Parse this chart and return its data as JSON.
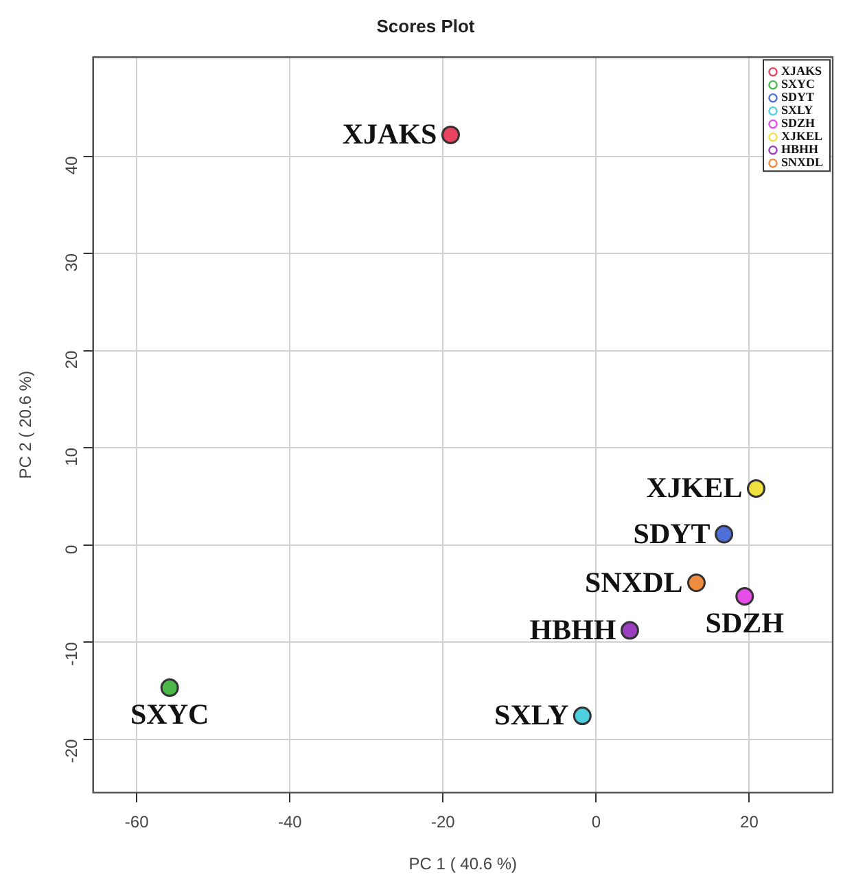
{
  "chart_data": {
    "type": "scatter",
    "title": "Scores Plot",
    "xlabel": "PC 1 ( 40.6 %)",
    "ylabel": "PC 2 ( 20.6 %)",
    "xlim": [
      -65.7,
      30.9
    ],
    "ylim": [
      -25.5,
      50.2
    ],
    "xticks": [
      -60,
      -40,
      -20,
      0,
      20
    ],
    "yticks": [
      -20,
      -10,
      0,
      10,
      20,
      30,
      40
    ],
    "grid": true,
    "legend": "top right",
    "marker": "circle",
    "series": [
      {
        "name": "XJAKS",
        "color": "#e8435f",
        "x": [
          -19.0
        ],
        "values": [
          42.2
        ]
      },
      {
        "name": "SXYC",
        "color": "#4cb84c",
        "x": [
          -55.7
        ],
        "values": [
          -14.7
        ]
      },
      {
        "name": "SDYT",
        "color": "#4f6fd8",
        "x": [
          16.7
        ],
        "values": [
          1.1
        ]
      },
      {
        "name": "SXLY",
        "color": "#4fd0e0",
        "x": [
          -1.8
        ],
        "values": [
          -17.6
        ]
      },
      {
        "name": "SDZH",
        "color": "#e64ce6",
        "x": [
          19.4
        ],
        "values": [
          -5.3
        ]
      },
      {
        "name": "XJKEL",
        "color": "#f0e040",
        "x": [
          20.9
        ],
        "values": [
          5.8
        ]
      },
      {
        "name": "HBHH",
        "color": "#9b3fc0",
        "x": [
          4.4
        ],
        "values": [
          -8.8
        ]
      },
      {
        "name": "SNXDL",
        "color": "#f08c40",
        "x": [
          13.1
        ],
        "values": [
          -3.9
        ]
      }
    ]
  }
}
